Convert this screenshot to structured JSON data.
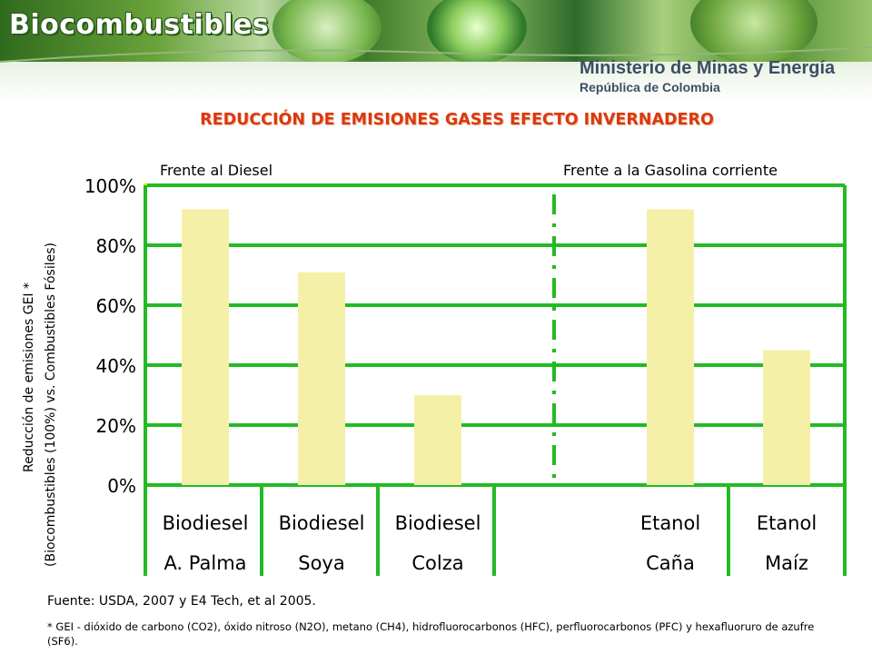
{
  "header": {
    "banner_title": "Biocombustibles",
    "ministry": "Ministerio de Minas y Energía",
    "republic": "República de Colombia"
  },
  "chart_data": {
    "type": "bar",
    "title": "REDUCCIÓN DE EMISIONES GASES EFECTO INVERNADERO",
    "ylabel_line1": "Reducción de emisiones GEI *",
    "ylabel_line2": "(Biocombustibles (100%)  vs. Combustibles Fósiles)",
    "groups": [
      "Frente al Diesel",
      "Frente a la Gasolina corriente"
    ],
    "categories": [
      {
        "line1": "Biodiesel",
        "line2": "A. Palma"
      },
      {
        "line1": "Biodiesel",
        "line2": "Soya"
      },
      {
        "line1": "Biodiesel",
        "line2": "Colza"
      },
      {
        "line1": "Etanol",
        "line2": "Caña"
      },
      {
        "line1": "Etanol",
        "line2": "Maíz"
      }
    ],
    "values": [
      92,
      71,
      30,
      92,
      45
    ],
    "ylim": [
      0,
      100
    ],
    "yticks": [
      "0%",
      "20%",
      "40%",
      "60%",
      "80%",
      "100%"
    ],
    "grid": true,
    "colors": {
      "bar": "#f5f0a8",
      "grid": "#22bb22",
      "divider": "#22bb22",
      "tick_mark": "#eedd00",
      "title": "#d83a10"
    }
  },
  "footer": {
    "source": "Fuente: USDA, 2007 y E4 Tech, et al 2005.",
    "note": "* GEI - dióxido de carbono (CO2), óxido nitroso (N2O), metano (CH4), hidrofluorocarbonos (HFC), perfluorocarbonos (PFC) y hexafluoruro de azufre (SF6)."
  }
}
